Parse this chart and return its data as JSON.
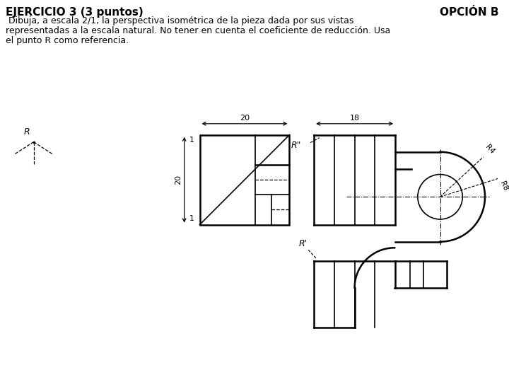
{
  "title_left": "EJERCICIO 3 (3 puntos)",
  "title_right": "OPCIÓN B",
  "subtitle_lines": [
    " Dibuja, a escala 2/1, la perspectiva isométrica de la pieza dada por sus vistas",
    "representadas a la escala natural. No tener en cuenta el coeficiente de reducción. Usa",
    "el punto R como referencia."
  ],
  "bg_color": "#ffffff",
  "line_color": "#000000",
  "dim_20_front": "20",
  "dim_20_left": "20",
  "dim_18": "18",
  "R_label": "R",
  "R_double_prime": "R\"",
  "R_prime": "R'",
  "R4_label": "R4",
  "R8_label": "R8",
  "label_1_top": "1",
  "label_1_bot": "1"
}
